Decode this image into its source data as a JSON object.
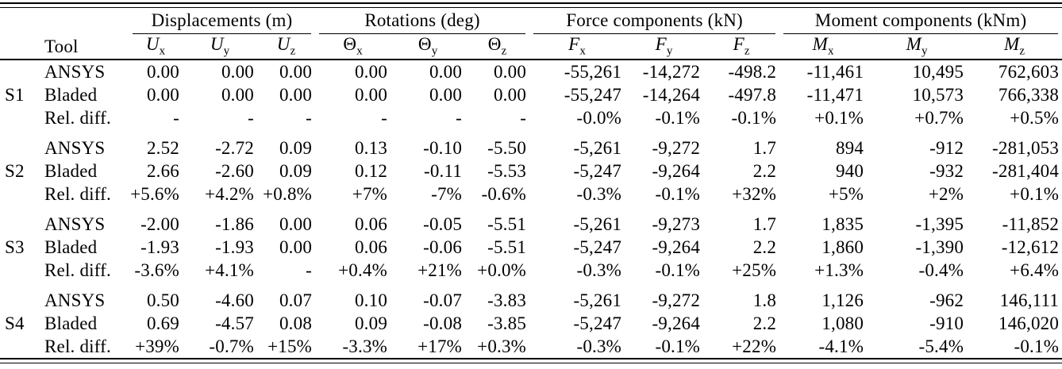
{
  "table": {
    "tool_header": "Tool",
    "column_groups": [
      {
        "label": "Displacements (m)"
      },
      {
        "label": "Rotations (deg)"
      },
      {
        "label": "Force components (kN)"
      },
      {
        "label": "Moment components (kNm)"
      }
    ],
    "subheaders": [
      {
        "base": "U",
        "sub": "x",
        "italic": true
      },
      {
        "base": "U",
        "sub": "y",
        "italic": true
      },
      {
        "base": "U",
        "sub": "z",
        "italic": true
      },
      {
        "base": "Θ",
        "sub": "x",
        "italic": false
      },
      {
        "base": "Θ",
        "sub": "y",
        "italic": false
      },
      {
        "base": "Θ",
        "sub": "z",
        "italic": false
      },
      {
        "base": "F",
        "sub": "x",
        "italic": true
      },
      {
        "base": "F",
        "sub": "y",
        "italic": true
      },
      {
        "base": "F",
        "sub": "z",
        "italic": true
      },
      {
        "base": "M",
        "sub": "x",
        "italic": true
      },
      {
        "base": "M",
        "sub": "y",
        "italic": true
      },
      {
        "base": "M",
        "sub": "z",
        "italic": true
      }
    ],
    "blocks": [
      {
        "label": "S1",
        "rows": [
          {
            "tool": "ANSYS",
            "values": [
              "0.00",
              "0.00",
              "0.00",
              "0.00",
              "0.00",
              "0.00",
              "-55,261",
              "-14,272",
              "-498.2",
              "-11,461",
              "10,495",
              "762,603"
            ]
          },
          {
            "tool": "Bladed",
            "values": [
              "0.00",
              "0.00",
              "0.00",
              "0.00",
              "0.00",
              "0.00",
              "-55,247",
              "-14,264",
              "-497.8",
              "-11,471",
              "10,573",
              "766,338"
            ]
          },
          {
            "tool": "Rel. diff.",
            "values": [
              "-",
              "-",
              "-",
              "-",
              "-",
              "-",
              "-0.0%",
              "-0.1%",
              "-0.1%",
              "+0.1%",
              "+0.7%",
              "+0.5%"
            ]
          }
        ]
      },
      {
        "label": "S2",
        "rows": [
          {
            "tool": "ANSYS",
            "values": [
              "2.52",
              "-2.72",
              "0.09",
              "0.13",
              "-0.10",
              "-5.50",
              "-5,261",
              "-9,272",
              "1.7",
              "894",
              "-912",
              "-281,053"
            ]
          },
          {
            "tool": "Bladed",
            "values": [
              "2.66",
              "-2.60",
              "0.09",
              "0.12",
              "-0.11",
              "-5.53",
              "-5,247",
              "-9,264",
              "2.2",
              "940",
              "-932",
              "-281,404"
            ]
          },
          {
            "tool": "Rel. diff.",
            "values": [
              "+5.6%",
              "+4.2%",
              "+0.8%",
              "+7%",
              "-7%",
              "-0.6%",
              "-0.3%",
              "-0.1%",
              "+32%",
              "+5%",
              "+2%",
              "+0.1%"
            ]
          }
        ]
      },
      {
        "label": "S3",
        "rows": [
          {
            "tool": "ANSYS",
            "values": [
              "-2.00",
              "-1.86",
              "0.00",
              "0.06",
              "-0.05",
              "-5.51",
              "-5,261",
              "-9,273",
              "1.7",
              "1,835",
              "-1,395",
              "-11,852"
            ]
          },
          {
            "tool": "Bladed",
            "values": [
              "-1.93",
              "-1.93",
              "0.00",
              "0.06",
              "-0.06",
              "-5.51",
              "-5,247",
              "-9,264",
              "2.2",
              "1,860",
              "-1,390",
              "-12,612"
            ]
          },
          {
            "tool": "Rel. diff.",
            "values": [
              "-3.6%",
              "+4.1%",
              "-",
              "+0.4%",
              "+21%",
              "+0.0%",
              "-0.3%",
              "-0.1%",
              "+25%",
              "+1.3%",
              "-0.4%",
              "+6.4%"
            ]
          }
        ]
      },
      {
        "label": "S4",
        "rows": [
          {
            "tool": "ANSYS",
            "values": [
              "0.50",
              "-4.60",
              "0.07",
              "0.10",
              "-0.07",
              "-3.83",
              "-5,261",
              "-9,272",
              "1.8",
              "1,126",
              "-962",
              "146,111"
            ]
          },
          {
            "tool": "Bladed",
            "values": [
              "0.69",
              "-4.57",
              "0.08",
              "0.09",
              "-0.08",
              "-3.85",
              "-5,247",
              "-9,264",
              "2.2",
              "1,080",
              "-910",
              "146,020"
            ]
          },
          {
            "tool": "Rel. diff.",
            "values": [
              "+39%",
              "-0.7%",
              "+15%",
              "-3.3%",
              "+17%",
              "+0.3%",
              "-0.3%",
              "-0.1%",
              "+22%",
              "-4.1%",
              "-5.4%",
              "-0.1%"
            ]
          }
        ]
      }
    ]
  }
}
